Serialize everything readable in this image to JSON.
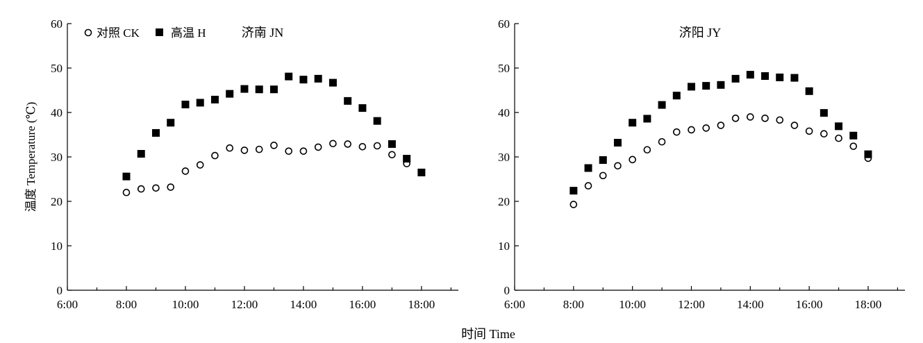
{
  "figure": {
    "ylabel": "温度 Temperature (℃)",
    "xlabel": "时间 Time"
  },
  "legend": {
    "ck_label": "对照 CK",
    "h_label": "高温 H"
  },
  "chart_data": [
    {
      "type": "scatter",
      "title": "济南 JN",
      "xlabel": "时间 Time",
      "ylabel": "温度 Temperature (℃)",
      "x_unit": "hour",
      "xlim": [
        6,
        19.25
      ],
      "ylim": [
        0,
        60
      ],
      "xticks": [
        "6:00",
        "8:00",
        "10:00",
        "12:00",
        "14:00",
        "16:00",
        "18:00"
      ],
      "xtick_values": [
        6,
        8,
        10,
        12,
        14,
        16,
        18
      ],
      "yticks": [
        0,
        10,
        20,
        30,
        40,
        50,
        60
      ],
      "legend_position": "top-left",
      "series": [
        {
          "name": "对照 CK",
          "marker": "open-circle",
          "x": [
            8,
            8.5,
            9,
            9.5,
            10,
            10.5,
            11,
            11.5,
            12,
            12.5,
            13,
            13.5,
            14,
            14.5,
            15,
            15.5,
            16,
            16.5,
            17,
            17.5
          ],
          "y": [
            22.0,
            22.8,
            23.0,
            23.2,
            26.8,
            28.2,
            30.3,
            32.0,
            31.5,
            31.7,
            32.6,
            31.3,
            31.3,
            32.2,
            33.0,
            32.9,
            32.3,
            32.5,
            30.5,
            28.5
          ]
        },
        {
          "name": "高温 H",
          "marker": "filled-square",
          "x": [
            8,
            8.5,
            9,
            9.5,
            10,
            10.5,
            11,
            11.5,
            12,
            12.5,
            13,
            13.5,
            14,
            14.5,
            15,
            15.5,
            16,
            16.5,
            17,
            17.5,
            18
          ],
          "y": [
            25.6,
            30.7,
            35.4,
            37.7,
            41.8,
            42.2,
            42.9,
            44.2,
            45.3,
            45.2,
            45.2,
            48.1,
            47.4,
            47.6,
            46.7,
            42.6,
            41.0,
            38.1,
            32.9,
            29.6,
            26.5
          ]
        }
      ]
    },
    {
      "type": "scatter",
      "title": "济阳 JY",
      "xlabel": "时间 Time",
      "ylabel": "温度 Temperature (℃)",
      "x_unit": "hour",
      "xlim": [
        6,
        19.25
      ],
      "ylim": [
        0,
        60
      ],
      "xticks": [
        "6:00",
        "8:00",
        "10:00",
        "12:00",
        "14:00",
        "16:00",
        "18:00"
      ],
      "xtick_values": [
        6,
        8,
        10,
        12,
        14,
        16,
        18
      ],
      "yticks": [
        0,
        10,
        20,
        30,
        40,
        50,
        60
      ],
      "series": [
        {
          "name": "对照 CK",
          "marker": "open-circle",
          "x": [
            8,
            8.5,
            9,
            9.5,
            10,
            10.5,
            11,
            11.5,
            12,
            12.5,
            13,
            13.5,
            14,
            14.5,
            15,
            15.5,
            16,
            16.5,
            17,
            17.5,
            18
          ],
          "y": [
            19.3,
            23.5,
            25.8,
            28.0,
            29.4,
            31.6,
            33.4,
            35.6,
            36.1,
            36.5,
            37.1,
            38.7,
            39.0,
            38.7,
            38.3,
            37.1,
            35.8,
            35.2,
            34.2,
            32.4,
            29.7
          ]
        },
        {
          "name": "高温 H",
          "marker": "filled-square",
          "x": [
            8,
            8.5,
            9,
            9.5,
            10,
            10.5,
            11,
            11.5,
            12,
            12.5,
            13,
            13.5,
            14,
            14.5,
            15,
            15.5,
            16,
            16.5,
            17,
            17.5,
            18
          ],
          "y": [
            22.4,
            27.5,
            29.3,
            33.2,
            37.7,
            38.6,
            41.7,
            43.8,
            45.8,
            46.0,
            46.2,
            47.6,
            48.5,
            48.2,
            47.9,
            47.8,
            44.8,
            39.9,
            36.9,
            34.8,
            30.6
          ]
        }
      ]
    }
  ]
}
